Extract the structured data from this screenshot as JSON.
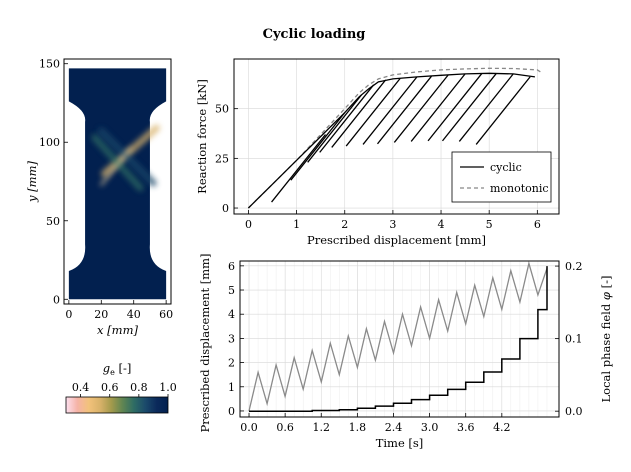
{
  "figure_title": "Cyclic loading",
  "chart_data": [
    {
      "id": "specimen-map",
      "type": "heatmap",
      "xlabel": "x [mm]",
      "ylabel": "y [mm]",
      "xlim": [
        -3,
        63
      ],
      "ylim": [
        -3,
        153
      ],
      "xticks": [
        0,
        20,
        40,
        60
      ],
      "yticks": [
        0,
        50,
        100,
        150
      ],
      "xtick_labels": [
        "0",
        "20",
        "40",
        "60"
      ],
      "ytick_labels": [
        "0",
        "50",
        "100",
        "150"
      ],
      "colorbar": {
        "label": "g_e [-]",
        "label_main": "g",
        "label_sub": "e",
        "label_unit": " [-]",
        "range": [
          0.3,
          1.0
        ],
        "ticks": [
          0.4,
          0.6,
          0.8,
          1.0
        ],
        "tick_labels": [
          "0.4",
          "0.6",
          "0.8",
          "1.0"
        ],
        "stops": [
          "#fde0ef",
          "#f5b3a7",
          "#f2c27b",
          "#d9b26a",
          "#a39a4c",
          "#5f8552",
          "#2e6c64",
          "#1b4a6b",
          "#0b2a5b",
          "#02204f"
        ]
      },
      "colors": {
        "field": "#02204f"
      },
      "bands": [
        {
          "name": "band-a",
          "from": [
            22,
            80
          ],
          "to": [
            54,
            109
          ],
          "value": 0.55
        },
        {
          "name": "band-b",
          "from": [
            16,
            103
          ],
          "to": [
            44,
            71
          ],
          "value": 0.8
        },
        {
          "name": "band-c",
          "from": [
            20,
            107
          ],
          "to": [
            52,
            74
          ],
          "value": 0.85
        }
      ]
    },
    {
      "id": "force-displacement",
      "type": "line",
      "xlabel": "Prescribed displacement [mm]",
      "ylabel": "Reaction force [kN]",
      "xlim": [
        -0.3,
        6.45
      ],
      "ylim": [
        -3,
        75
      ],
      "xticks": [
        0,
        1,
        2,
        3,
        4,
        5,
        6
      ],
      "yticks": [
        0,
        25,
        50
      ],
      "xtick_labels": [
        "0",
        "1",
        "2",
        "3",
        "4",
        "5",
        "6"
      ],
      "ytick_labels": [
        "0",
        "25",
        "50"
      ],
      "legend": {
        "position": "bottom-right",
        "entries": [
          "cyclic",
          "monotonic"
        ]
      },
      "series": [
        {
          "name": "monotonic",
          "style": "dashed",
          "color": "#888888",
          "x": [
            0.0,
            0.5,
            1.0,
            1.5,
            2.0,
            2.3,
            2.5,
            2.7,
            3.0,
            3.5,
            4.0,
            4.5,
            5.0,
            5.5,
            6.0,
            6.1
          ],
          "y": [
            0,
            12,
            24,
            37,
            50,
            58,
            62,
            65,
            67,
            68.5,
            69.5,
            70,
            70.3,
            70.2,
            69.5,
            68
          ]
        },
        {
          "name": "cyclic-envelope",
          "style": "solid",
          "color": "#000000",
          "x": [
            0.0,
            0.5,
            1.0,
            1.5,
            2.0,
            2.3,
            2.5,
            2.7,
            3.0,
            3.5,
            4.0,
            4.5,
            5.0,
            5.5,
            5.95
          ],
          "y": [
            0,
            12,
            24,
            36,
            48,
            56,
            60,
            63.5,
            65,
            66,
            66.8,
            67.5,
            67.8,
            67.5,
            66
          ]
        }
      ],
      "cycles": {
        "name": "cyclic",
        "peaks": [
          [
            1.6,
            37
          ],
          [
            2.0,
            48
          ],
          [
            2.35,
            57
          ],
          [
            2.6,
            62
          ],
          [
            2.85,
            64.5
          ],
          [
            3.15,
            65.2
          ],
          [
            3.5,
            66
          ],
          [
            3.8,
            66.3
          ],
          [
            4.15,
            67
          ],
          [
            4.5,
            67.5
          ],
          [
            4.85,
            67.8
          ],
          [
            5.15,
            67.8
          ],
          [
            5.5,
            67.5
          ],
          [
            5.85,
            66
          ]
        ],
        "unload_dx": 1.12,
        "unload_dy": 34
      }
    },
    {
      "id": "loading-history",
      "type": "line",
      "xlabel": "Time [s]",
      "ylabel_left": "Prescribed displacement [mm]",
      "ylabel_right": "Local phase field φ [-]",
      "ylabel_right_main": "Local phase field ",
      "ylabel_right_symbol": "φ",
      "ylabel_right_unit": " [-]",
      "xlim": [
        -0.15,
        5.15
      ],
      "ylim_left": [
        -0.25,
        6.2
      ],
      "ylim_right": [
        -0.008,
        0.207
      ],
      "xticks": [
        0.0,
        0.6,
        1.2,
        1.8,
        2.4,
        3.0,
        3.6,
        4.2
      ],
      "xtick_labels": [
        "0.0",
        "0.6",
        "1.2",
        "1.8",
        "2.4",
        "3.0",
        "3.6",
        "4.2"
      ],
      "yticks_left": [
        0,
        1,
        2,
        3,
        4,
        5,
        6
      ],
      "ytick_labels_left": [
        "0",
        "1",
        "2",
        "3",
        "4",
        "5",
        "6"
      ],
      "yticks_right": [
        0.0,
        0.1,
        0.2
      ],
      "ytick_labels_right": [
        "0.0",
        "0.1",
        "0.2"
      ],
      "series": [
        {
          "name": "prescribed-displacement",
          "axis": "left",
          "color": "#8a8a8a",
          "x": [
            0,
            0.15,
            0.3,
            0.45,
            0.6,
            0.75,
            0.9,
            1.05,
            1.2,
            1.35,
            1.5,
            1.65,
            1.8,
            1.95,
            2.1,
            2.25,
            2.4,
            2.55,
            2.7,
            2.85,
            3.0,
            3.15,
            3.3,
            3.45,
            3.6,
            3.75,
            3.9,
            4.05,
            4.2,
            4.35,
            4.5,
            4.65,
            4.8,
            4.95
          ],
          "y": [
            0,
            1.6,
            0.3,
            1.9,
            0.6,
            2.2,
            0.9,
            2.5,
            1.2,
            2.8,
            1.5,
            3.1,
            1.8,
            3.4,
            2.1,
            3.7,
            2.4,
            4.0,
            2.7,
            4.3,
            3.0,
            4.6,
            3.3,
            4.9,
            3.6,
            5.2,
            3.9,
            5.5,
            4.2,
            5.8,
            4.5,
            6.1,
            4.8,
            5.9
          ]
        },
        {
          "name": "local-phase-field",
          "axis": "right",
          "color": "#000000",
          "x": [
            0,
            0.9,
            1.05,
            1.35,
            1.5,
            1.65,
            1.8,
            1.95,
            2.1,
            2.25,
            2.4,
            2.55,
            2.7,
            2.85,
            3.0,
            3.15,
            3.3,
            3.45,
            3.6,
            3.75,
            3.9,
            4.05,
            4.2,
            4.35,
            4.5,
            4.65,
            4.8,
            4.95
          ],
          "y": [
            0,
            0,
            0.001,
            0.001,
            0.002,
            0.002,
            0.004,
            0.004,
            0.007,
            0.007,
            0.011,
            0.011,
            0.016,
            0.016,
            0.022,
            0.022,
            0.03,
            0.03,
            0.04,
            0.04,
            0.054,
            0.054,
            0.072,
            0.072,
            0.1,
            0.1,
            0.14,
            0.2
          ]
        }
      ]
    }
  ]
}
